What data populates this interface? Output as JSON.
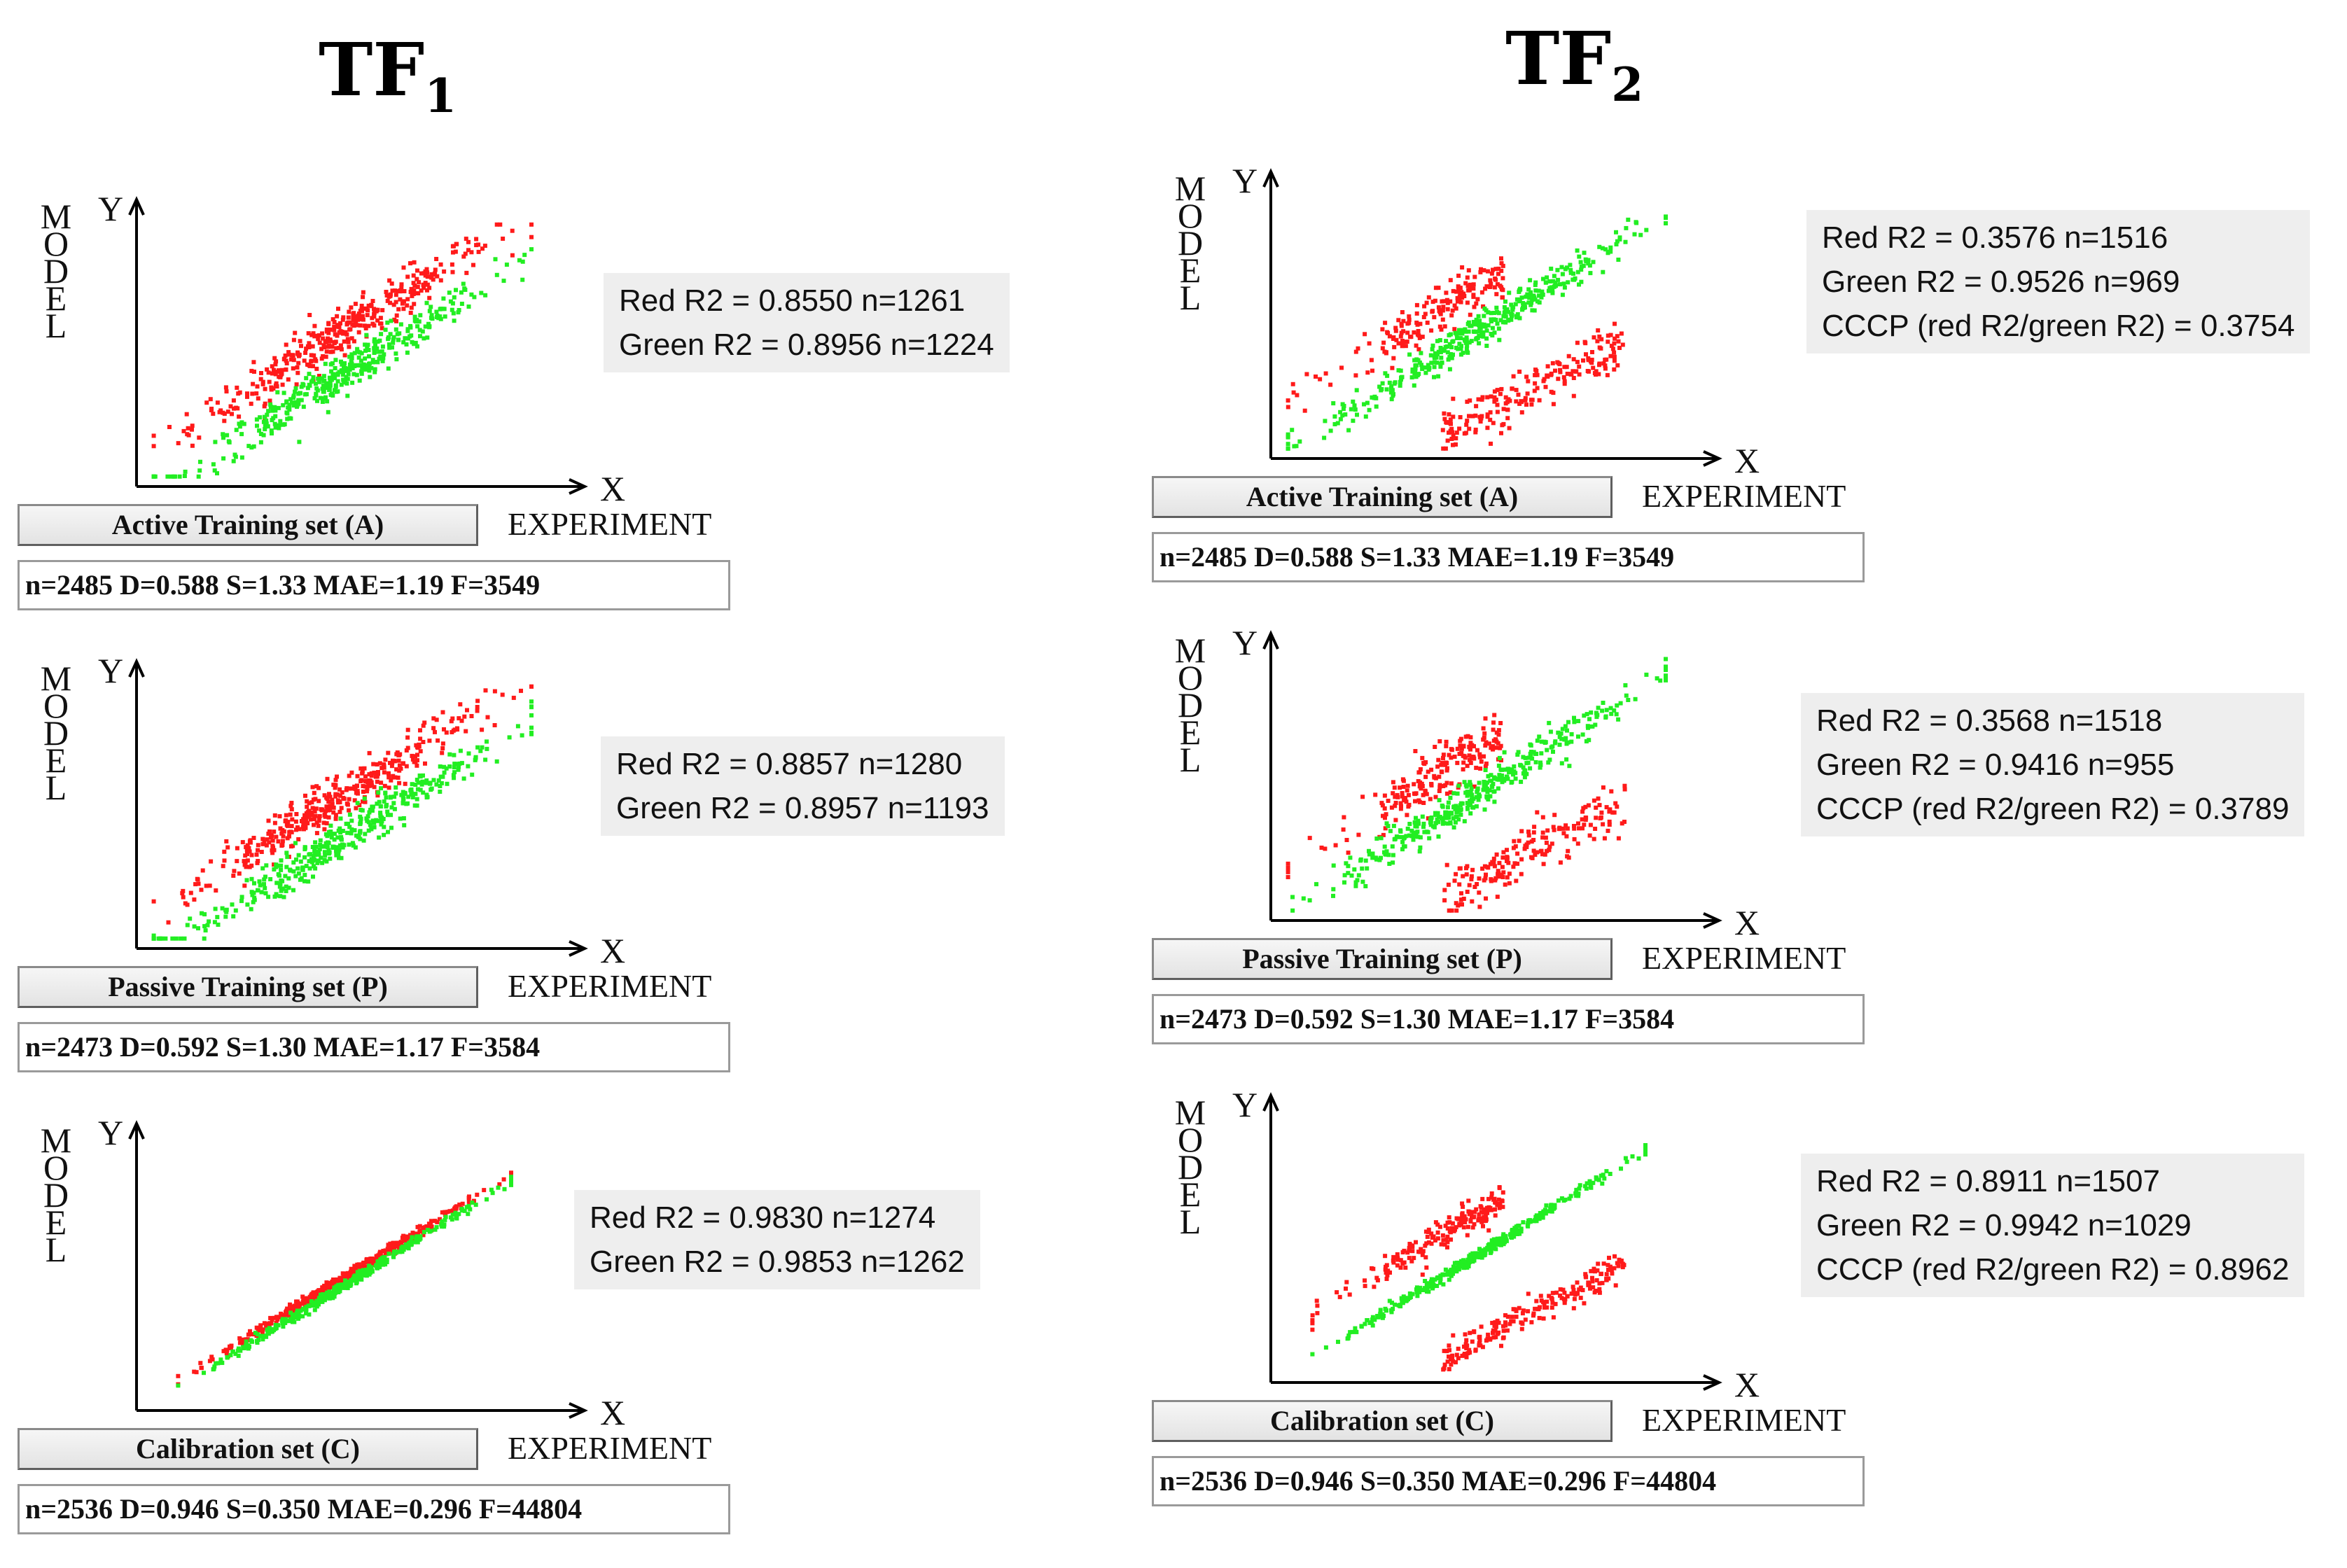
{
  "columns": [
    {
      "title": "TF",
      "subscript": "1"
    },
    {
      "title": "TF",
      "subscript": "2"
    }
  ],
  "axis_labels": {
    "y_letters": [
      "M",
      "O",
      "D",
      "E",
      "L"
    ],
    "y": "Y",
    "x": "X",
    "x_caption": "EXPERIMENT"
  },
  "colors": {
    "red": "#ff1a1a",
    "green": "#22ee22"
  },
  "chart_data": [
    {
      "type": "scatter",
      "column": "TF1",
      "set_label": "Active Training set (A)",
      "metrics": "n=2485  D=0.588  S=1.33  MAE=1.19  F=3549",
      "stats": [
        "Red R2 = 0.8550 n=1261",
        "Green R2 = 0.8956 n=1224"
      ],
      "series": [
        {
          "name": "red",
          "r2": 0.855,
          "n": 1261,
          "offset": 0.11,
          "spread": 0.045
        },
        {
          "name": "green",
          "r2": 0.8956,
          "n": 1224,
          "offset": -0.06,
          "spread": 0.04
        }
      ]
    },
    {
      "type": "scatter",
      "column": "TF1",
      "set_label": "Passive Training set (P)",
      "metrics": "n=2473  D=0.592  S=1.30  MAE=1.17  F=3584",
      "stats": [
        "Red R2 = 0.8857 n=1280",
        "Green R2 = 0.8957 n=1193"
      ],
      "series": [
        {
          "name": "red",
          "r2": 0.8857,
          "n": 1280,
          "offset": 0.1,
          "spread": 0.042
        },
        {
          "name": "green",
          "r2": 0.8957,
          "n": 1193,
          "offset": -0.07,
          "spread": 0.04
        }
      ]
    },
    {
      "type": "scatter",
      "column": "TF1",
      "set_label": "Calibration set (C)",
      "metrics": "n=2536  D=0.946  S=0.350  MAE=0.296  F=44804",
      "stats": [
        "Red R2 = 0.9830 n=1274",
        "Green R2 = 0.9853 n=1262"
      ],
      "series": [
        {
          "name": "red",
          "r2": 0.983,
          "n": 1274,
          "offset": 0.018,
          "spread": 0.018
        },
        {
          "name": "green",
          "r2": 0.9853,
          "n": 1262,
          "offset": -0.012,
          "spread": 0.016
        }
      ]
    },
    {
      "type": "scatter",
      "column": "TF2",
      "set_label": "Active Training set (A)",
      "metrics": "n=2485  D=0.588  S=1.33  MAE=1.19  F=3549",
      "stats": [
        "Red R2 = 0.3576 n=1516",
        "Green R2 = 0.9526 n=969",
        "CCCP (red R2/green R2) = 0.3754"
      ],
      "series": [
        {
          "name": "red",
          "r2": 0.3576,
          "n": 1516,
          "offset": 0,
          "spread": 0.05,
          "pattern": "cross"
        },
        {
          "name": "green",
          "r2": 0.9526,
          "n": 969,
          "offset": 0,
          "spread": 0.035
        }
      ]
    },
    {
      "type": "scatter",
      "column": "TF2",
      "set_label": "Passive Training set (P)",
      "metrics": "n=2473  D=0.592  S=1.30  MAE=1.17  F=3584",
      "stats": [
        "Red R2 = 0.3568 n=1518",
        "Green R2 = 0.9416 n=955",
        "CCCP (red R2/green R2) = 0.3789"
      ],
      "series": [
        {
          "name": "red",
          "r2": 0.3568,
          "n": 1518,
          "offset": 0,
          "spread": 0.05,
          "pattern": "cross"
        },
        {
          "name": "green",
          "r2": 0.9416,
          "n": 955,
          "offset": 0,
          "spread": 0.037
        }
      ]
    },
    {
      "type": "scatter",
      "column": "TF2",
      "set_label": "Calibration set (C)",
      "metrics": "n=2536  D=0.946  S=0.350  MAE=0.296  F=44804",
      "stats": [
        "Red R2 = 0.8911 n=1507",
        "Green R2 = 0.9942 n=1029",
        "CCCP (red R2/green R2) = 0.8962"
      ],
      "series": [
        {
          "name": "red",
          "r2": 0.8911,
          "n": 1507,
          "offset": 0,
          "spread": 0.03,
          "pattern": "cross"
        },
        {
          "name": "green",
          "r2": 0.9942,
          "n": 1029,
          "offset": 0,
          "spread": 0.018
        }
      ]
    }
  ]
}
